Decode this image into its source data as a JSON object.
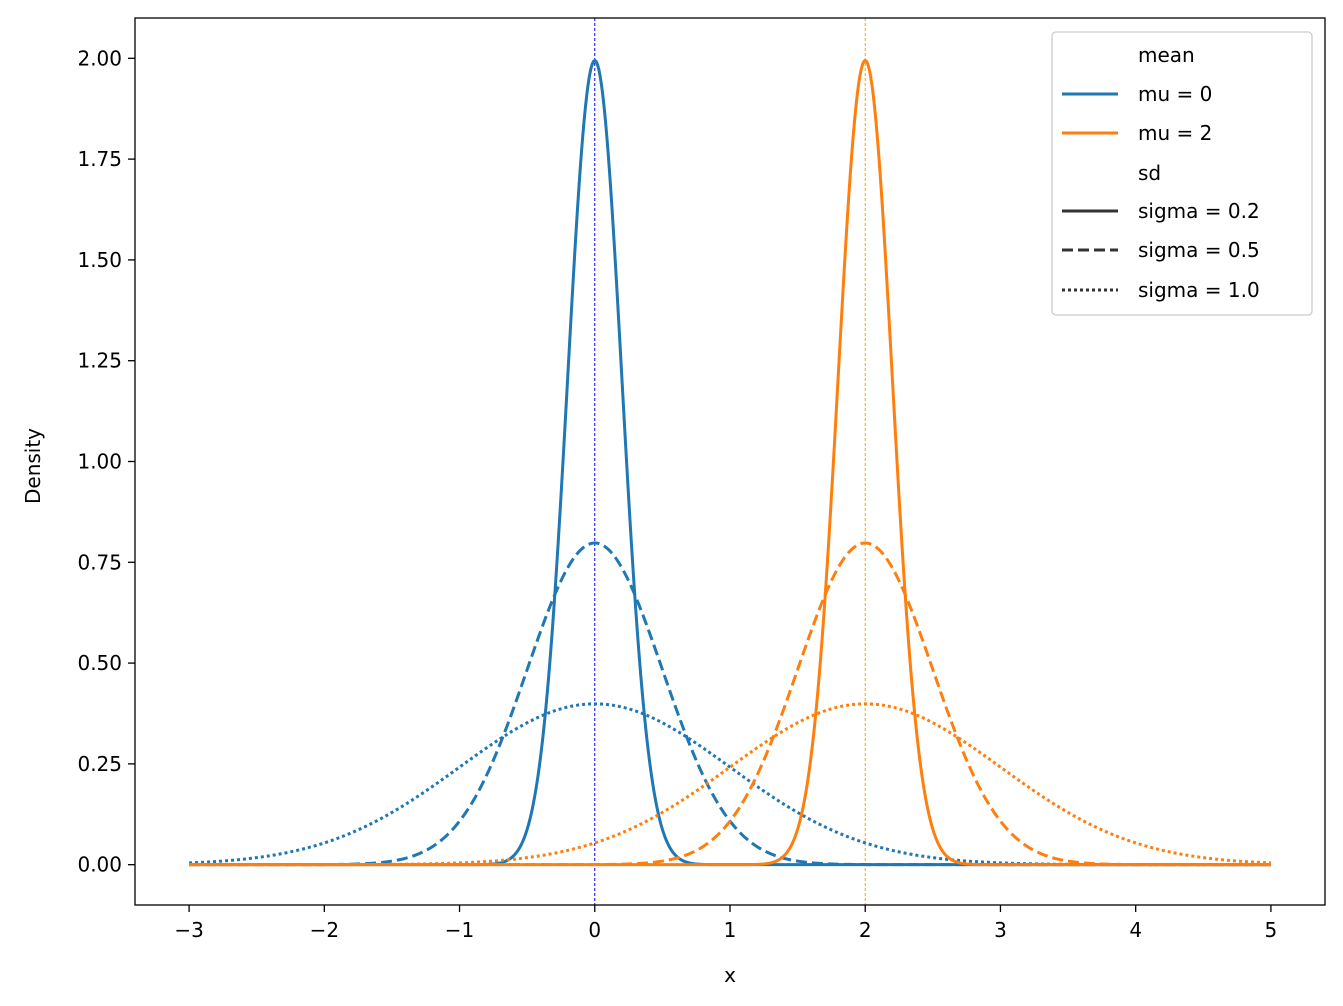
{
  "chart_data": {
    "type": "line",
    "xlabel": "x",
    "ylabel": "Density",
    "xlim": [
      -3.4,
      5.4
    ],
    "ylim": [
      -0.1,
      2.1
    ],
    "xticks": [
      -3,
      -2,
      -1,
      0,
      1,
      2,
      3,
      4,
      5
    ],
    "xtick_labels": [
      "−3",
      "−2",
      "−1",
      "0",
      "1",
      "2",
      "3",
      "4",
      "5"
    ],
    "yticks": [
      0,
      0.25,
      0.5,
      0.75,
      1.0,
      1.25,
      1.5,
      1.75,
      2.0
    ],
    "ytick_labels": [
      "0.00",
      "0.25",
      "0.50",
      "0.75",
      "1.00",
      "1.25",
      "1.50",
      "1.75",
      "2.00"
    ],
    "x_range": [
      -3,
      5
    ],
    "grid": false,
    "legend_position": "top-right",
    "legend": {
      "mean_title": "mean",
      "mean_entries": [
        {
          "label": "mu = 0",
          "color": "#1f77b4"
        },
        {
          "label": "mu = 2",
          "color": "#ff7f0e"
        }
      ],
      "sd_title": "sd",
      "sd_entries": [
        {
          "label": "sigma = 0.2",
          "style": "solid"
        },
        {
          "label": "sigma = 0.5",
          "style": "dashed"
        },
        {
          "label": "sigma = 1.0",
          "style": "dotted"
        }
      ]
    },
    "series": [
      {
        "mu": 0,
        "sigma": 0.2,
        "color": "#1f77b4",
        "style": "solid"
      },
      {
        "mu": 0,
        "sigma": 0.5,
        "color": "#1f77b4",
        "style": "dashed"
      },
      {
        "mu": 0,
        "sigma": 1.0,
        "color": "#1f77b4",
        "style": "dotted"
      },
      {
        "mu": 2,
        "sigma": 0.2,
        "color": "#ff7f0e",
        "style": "solid"
      },
      {
        "mu": 2,
        "sigma": 0.5,
        "color": "#ff7f0e",
        "style": "dashed"
      },
      {
        "mu": 2,
        "sigma": 1.0,
        "color": "#ff7f0e",
        "style": "dotted"
      }
    ],
    "vlines": [
      {
        "x": 0,
        "color": "#0000ff",
        "style": "dashed"
      },
      {
        "x": 2,
        "color": "#ffa500",
        "style": "dashed"
      }
    ]
  }
}
